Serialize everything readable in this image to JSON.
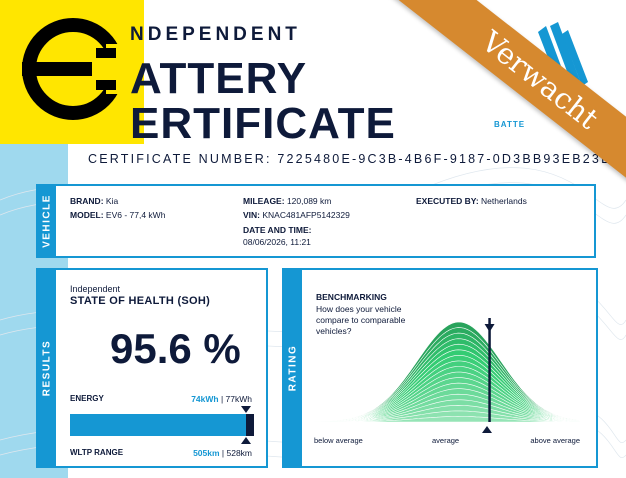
{
  "header": {
    "title_line1": "NDEPENDENT",
    "title_line2": "ATTERY",
    "title_line3": "ERTIFICATE",
    "certificate_number": "CERTIFICATE NUMBER: 7225480E-9C3B-4B6F-9187-0D3BB93EB23E",
    "brand_tag": "BATTE"
  },
  "ribbon": {
    "label": "Verwacht",
    "color": "#d6892f"
  },
  "colors": {
    "accent": "#1597d3",
    "navy": "#0e1a3a",
    "logo_bg": "#ffe600",
    "curve": "#2fc46a"
  },
  "vehicle": {
    "section_label": "VEHICLE",
    "brand_label": "BRAND:",
    "brand": "Kia",
    "model_label": "MODEL:",
    "model": "EV6 - 77,4 kWh",
    "mileage_label": "MILEAGE:",
    "mileage": "120,089 km",
    "vin_label": "VIN:",
    "vin": "KNAC481AFP5142329",
    "date_label": "DATE AND TIME:",
    "date": "08/06/2026, 11:21",
    "executed_label": "EXECUTED BY:",
    "executed": "Netherlands"
  },
  "results": {
    "section_label": "RESULTS",
    "independent": "Independent",
    "soh_title": "STATE OF HEALTH (SOH)",
    "soh_value": "95.6 %",
    "energy_label": "ENERGY",
    "energy_current": "74kWh",
    "energy_sep": " | ",
    "energy_total": "77kWh",
    "energy_fraction": 0.956,
    "wltp_label": "WLTP RANGE",
    "wltp_current": "505km",
    "wltp_sep": " | ",
    "wltp_total": "528km"
  },
  "rating": {
    "section_label": "RATING",
    "title": "BENCHMARKING",
    "question": "How does your vehicle compare to comparable vehicles?",
    "label_below": "below average",
    "label_average": "average",
    "label_above": "above average",
    "vehicle_position": 0.66
  }
}
